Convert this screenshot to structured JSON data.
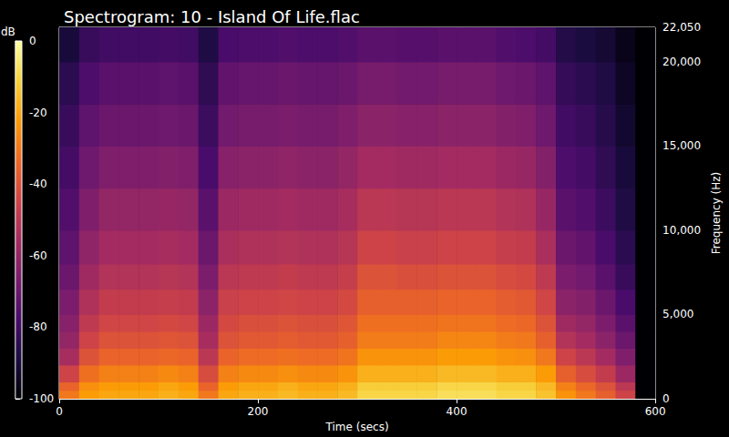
{
  "chart_data": {
    "type": "heatmap",
    "title": "Spectrogram: 10 - Island Of Life.flac",
    "x_label": "Time (secs)",
    "y_label": "Frequency (Hz)",
    "colorbar_label": "dB",
    "x_bins": [
      0,
      20,
      40,
      60,
      80,
      100,
      120,
      140,
      160,
      180,
      200,
      220,
      240,
      260,
      280,
      300,
      320,
      340,
      360,
      380,
      400,
      420,
      440,
      460,
      480,
      500,
      520,
      540,
      560,
      580,
      600
    ],
    "y_bins": [
      0,
      500,
      1000,
      2000,
      3000,
      4000,
      5000,
      6500,
      8000,
      10000,
      12500,
      15000,
      17500,
      20000,
      22050
    ],
    "values": [
      [
        -30,
        -22,
        -20,
        -20,
        -20,
        -18,
        -20,
        -30,
        -20,
        -18,
        -18,
        -16,
        -18,
        -18,
        -16,
        -10,
        -10,
        -10,
        -10,
        -8,
        -8,
        -8,
        -10,
        -10,
        -14,
        -24,
        -30,
        -36,
        -45,
        -100
      ],
      [
        -35,
        -25,
        -22,
        -22,
        -22,
        -20,
        -22,
        -35,
        -22,
        -20,
        -20,
        -18,
        -20,
        -20,
        -18,
        -12,
        -12,
        -12,
        -12,
        -10,
        -10,
        -10,
        -12,
        -12,
        -16,
        -28,
        -34,
        -40,
        -50,
        -100
      ],
      [
        -45,
        -32,
        -28,
        -28,
        -28,
        -26,
        -28,
        -42,
        -28,
        -26,
        -26,
        -25,
        -26,
        -26,
        -24,
        -18,
        -18,
        -18,
        -18,
        -16,
        -16,
        -16,
        -18,
        -18,
        -22,
        -36,
        -42,
        -48,
        -58,
        -100
      ],
      [
        -55,
        -40,
        -35,
        -35,
        -35,
        -34,
        -35,
        -50,
        -35,
        -33,
        -33,
        -32,
        -33,
        -33,
        -31,
        -24,
        -24,
        -24,
        -24,
        -22,
        -22,
        -22,
        -24,
        -25,
        -30,
        -45,
        -50,
        -56,
        -65,
        -100
      ],
      [
        -60,
        -45,
        -40,
        -40,
        -40,
        -39,
        -40,
        -55,
        -40,
        -38,
        -38,
        -37,
        -38,
        -38,
        -36,
        -29,
        -29,
        -29,
        -29,
        -27,
        -27,
        -27,
        -29,
        -30,
        -36,
        -52,
        -56,
        -62,
        -70,
        -100
      ],
      [
        -63,
        -49,
        -44,
        -44,
        -44,
        -43,
        -44,
        -58,
        -43,
        -41,
        -41,
        -40,
        -41,
        -41,
        -39,
        -32,
        -32,
        -32,
        -32,
        -31,
        -31,
        -31,
        -33,
        -34,
        -40,
        -57,
        -60,
        -66,
        -74,
        -100
      ],
      [
        -66,
        -53,
        -48,
        -48,
        -48,
        -47,
        -48,
        -62,
        -46,
        -45,
        -45,
        -44,
        -45,
        -45,
        -43,
        -36,
        -36,
        -36,
        -36,
        -35,
        -35,
        -35,
        -37,
        -38,
        -44,
        -62,
        -64,
        -70,
        -78,
        -100
      ],
      [
        -70,
        -57,
        -52,
        -52,
        -52,
        -51,
        -52,
        -66,
        -50,
        -49,
        -49,
        -48,
        -49,
        -49,
        -47,
        -40,
        -40,
        -41,
        -41,
        -40,
        -40,
        -40,
        -42,
        -43,
        -49,
        -66,
        -68,
        -74,
        -82,
        -100
      ],
      [
        -73,
        -61,
        -56,
        -56,
        -56,
        -55,
        -56,
        -70,
        -54,
        -53,
        -53,
        -52,
        -53,
        -53,
        -51,
        -45,
        -45,
        -46,
        -46,
        -45,
        -45,
        -45,
        -47,
        -48,
        -54,
        -70,
        -72,
        -78,
        -85,
        -100
      ],
      [
        -76,
        -65,
        -60,
        -60,
        -60,
        -59,
        -60,
        -74,
        -58,
        -57,
        -57,
        -56,
        -57,
        -57,
        -55,
        -50,
        -50,
        -51,
        -51,
        -50,
        -50,
        -50,
        -52,
        -53,
        -59,
        -74,
        -76,
        -81,
        -88,
        -100
      ],
      [
        -79,
        -69,
        -65,
        -65,
        -65,
        -64,
        -65,
        -78,
        -63,
        -62,
        -62,
        -61,
        -62,
        -62,
        -60,
        -56,
        -56,
        -57,
        -57,
        -56,
        -56,
        -56,
        -58,
        -59,
        -64,
        -77,
        -79,
        -84,
        -90,
        -100
      ],
      [
        -82,
        -73,
        -70,
        -70,
        -70,
        -69,
        -70,
        -81,
        -68,
        -67,
        -67,
        -66,
        -67,
        -67,
        -65,
        -62,
        -62,
        -63,
        -63,
        -62,
        -62,
        -62,
        -64,
        -65,
        -69,
        -80,
        -82,
        -86,
        -92,
        -100
      ],
      [
        -85,
        -77,
        -74,
        -74,
        -74,
        -73,
        -74,
        -84,
        -72,
        -71,
        -71,
        -70,
        -71,
        -71,
        -70,
        -67,
        -67,
        -68,
        -68,
        -67,
        -67,
        -67,
        -69,
        -70,
        -73,
        -83,
        -85,
        -88,
        -94,
        -100
      ],
      [
        -90,
        -82,
        -80,
        -80,
        -80,
        -79,
        -80,
        -88,
        -78,
        -77,
        -77,
        -76,
        -77,
        -77,
        -76,
        -74,
        -74,
        -75,
        -75,
        -74,
        -74,
        -74,
        -76,
        -77,
        -79,
        -87,
        -89,
        -91,
        -96,
        -100
      ]
    ],
    "xlim": [
      0,
      600
    ],
    "xticks": [
      0,
      200,
      400,
      600
    ],
    "ylim": [
      0,
      22050
    ],
    "yticks": [
      0,
      5000,
      10000,
      15000,
      20000
    ],
    "color_range": [
      -100,
      0
    ],
    "color_ticks": [
      0,
      -20,
      -40,
      -60,
      -80,
      -100
    ]
  }
}
